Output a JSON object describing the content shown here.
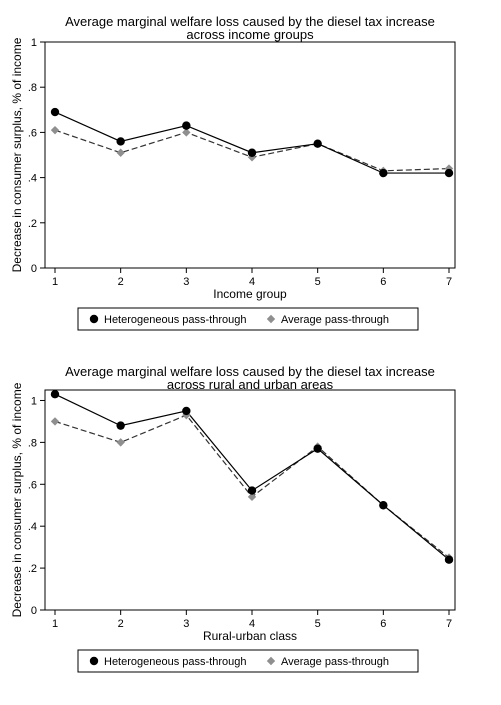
{
  "chart_data": [
    {
      "type": "line",
      "title": "Average marginal welfare loss caused by the diesel tax increase",
      "subtitle": "across income groups",
      "xlabel": "Income group",
      "ylabel": "Decrease in consumer surplus, % of income",
      "x": [
        1,
        2,
        3,
        4,
        5,
        6,
        7
      ],
      "xticks": [
        "1",
        "2",
        "3",
        "4",
        "5",
        "6",
        "7"
      ],
      "yticks": [
        {
          "value": 0,
          "label": "0"
        },
        {
          "value": 0.2,
          "label": ".2"
        },
        {
          "value": 0.4,
          "label": ".4"
        },
        {
          "value": 0.6,
          "label": ".6"
        },
        {
          "value": 0.8,
          "label": ".8"
        },
        {
          "value": 1,
          "label": "1"
        }
      ],
      "ylim": [
        0,
        1
      ],
      "grid": false,
      "legend_position": "bottom",
      "series": [
        {
          "name": "Heterogeneous pass-through",
          "values": [
            0.69,
            0.56,
            0.63,
            0.51,
            0.55,
            0.42,
            0.42
          ],
          "color": "#000000",
          "marker": "circle",
          "dash": false
        },
        {
          "name": "Average pass-through",
          "values": [
            0.61,
            0.51,
            0.6,
            0.49,
            0.55,
            0.43,
            0.44
          ],
          "color": "#8f8f8f",
          "marker": "diamond",
          "dash": true
        }
      ]
    },
    {
      "type": "line",
      "title": "Average marginal welfare loss caused by the diesel tax increase",
      "subtitle": "across rural and urban areas",
      "xlabel": "Rural-urban class",
      "ylabel": "Decrease in consumer surplus, % of income",
      "x": [
        1,
        2,
        3,
        4,
        5,
        6,
        7
      ],
      "xticks": [
        "1",
        "2",
        "3",
        "4",
        "5",
        "6",
        "7"
      ],
      "yticks": [
        {
          "value": 0,
          "label": "0"
        },
        {
          "value": 0.2,
          "label": ".2"
        },
        {
          "value": 0.4,
          "label": ".4"
        },
        {
          "value": 0.6,
          "label": ".6"
        },
        {
          "value": 0.8,
          "label": ".8"
        },
        {
          "value": 1,
          "label": "1"
        }
      ],
      "ylim": [
        0,
        1.05
      ],
      "grid": false,
      "legend_position": "bottom",
      "series": [
        {
          "name": "Heterogeneous pass-through",
          "values": [
            1.03,
            0.88,
            0.95,
            0.57,
            0.77,
            0.5,
            0.24
          ],
          "color": "#000000",
          "marker": "circle",
          "dash": false
        },
        {
          "name": "Average pass-through",
          "values": [
            0.9,
            0.8,
            0.93,
            0.54,
            0.78,
            0.5,
            0.25
          ],
          "color": "#8f8f8f",
          "marker": "diamond",
          "dash": true
        }
      ]
    }
  ]
}
